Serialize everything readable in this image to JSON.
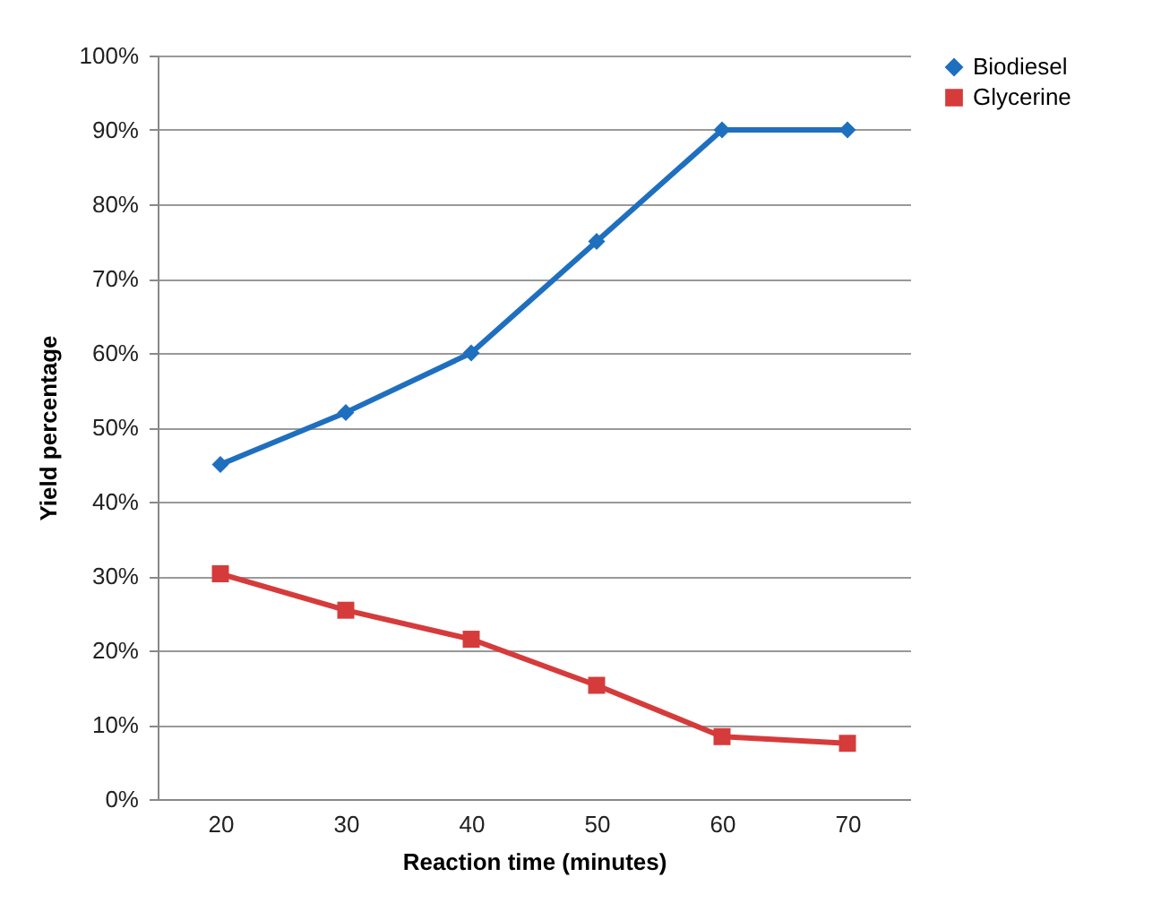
{
  "chart_data": {
    "type": "line",
    "xlabel": "Reaction time (minutes)",
    "ylabel": "Yield percentage",
    "categories": [
      "20",
      "30",
      "40",
      "50",
      "60",
      "70"
    ],
    "series": [
      {
        "name": "Biodiesel",
        "color": "#1f6fbf",
        "marker": "diamond",
        "values": [
          45,
          52,
          60,
          75,
          90,
          90
        ]
      },
      {
        "name": "Glycerine",
        "color": "#d63b3b",
        "marker": "square",
        "values": [
          30.3,
          25.4,
          21.5,
          15.3,
          8.4,
          7.5
        ]
      }
    ],
    "ylim": [
      0,
      100
    ],
    "yticks": [
      {
        "value": 0,
        "label": "0%"
      },
      {
        "value": 10,
        "label": "10%"
      },
      {
        "value": 20,
        "label": "20%"
      },
      {
        "value": 30,
        "label": "30%"
      },
      {
        "value": 40,
        "label": "40%"
      },
      {
        "value": 50,
        "label": "50%"
      },
      {
        "value": 60,
        "label": "60%"
      },
      {
        "value": 70,
        "label": "70%"
      },
      {
        "value": 80,
        "label": "80%"
      },
      {
        "value": 90,
        "label": "90%"
      },
      {
        "value": 100,
        "label": "100%"
      }
    ],
    "grid": "y",
    "legend": "right",
    "line_style": "solid"
  }
}
